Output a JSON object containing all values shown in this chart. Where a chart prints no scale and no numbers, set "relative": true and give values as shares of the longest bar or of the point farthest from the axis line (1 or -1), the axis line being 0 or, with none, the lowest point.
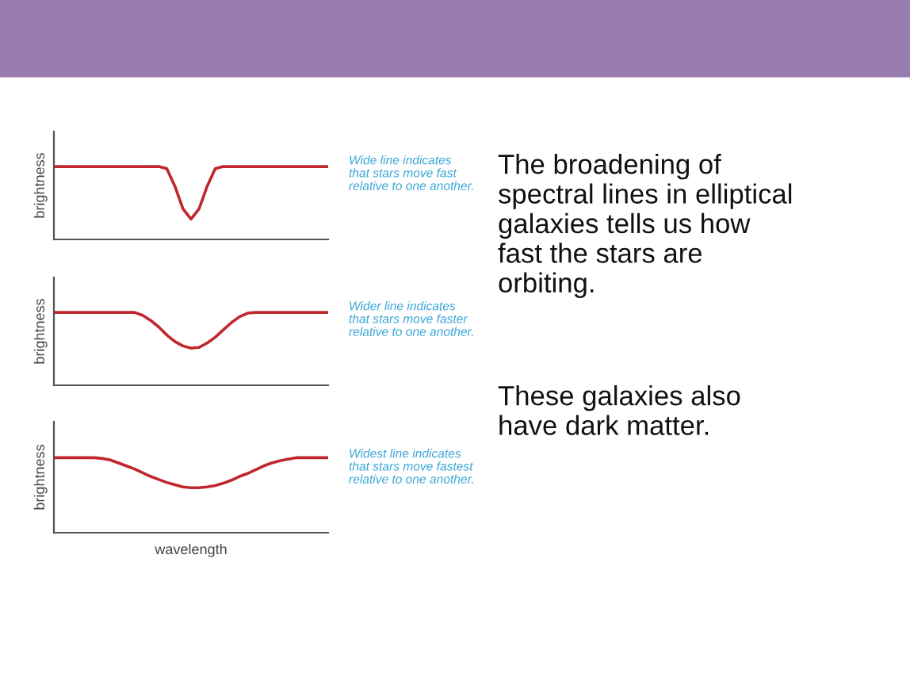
{
  "chart_data": [
    {
      "type": "line",
      "relative": true,
      "ylabel": "brightness",
      "categories": [
        null,
        null,
        null,
        null,
        null,
        null,
        null,
        null,
        null,
        null,
        null,
        null,
        null,
        null,
        null,
        null,
        null,
        null,
        null,
        null,
        null,
        null,
        null,
        null,
        null,
        null,
        null,
        null,
        null,
        null,
        null,
        null,
        null,
        null,
        null
      ],
      "series": [
        {
          "color": "#c0272d",
          "values": [
            1,
            1,
            1,
            1,
            1,
            1,
            1,
            1,
            1,
            1,
            1,
            1,
            1,
            1,
            0.97,
            0.73,
            0.42,
            0.28,
            0.42,
            0.73,
            0.97,
            1,
            1,
            1,
            1,
            1,
            1,
            1,
            1,
            1,
            1,
            1,
            1,
            1,
            1
          ]
        }
      ],
      "annotations": [
        "Wide line indicates\nthat stars move fast\nrelative to one another.",
        "The broadening of\nspectral lines in elliptical\ngalaxies tells us how\nfast the stars are\norbiting.",
        "These galaxies also\nhave dark matter."
      ]
    },
    {
      "type": "line",
      "relative": true,
      "ylabel": "brightness",
      "categories": [
        null,
        null,
        null,
        null,
        null,
        null,
        null,
        null,
        null,
        null,
        null,
        null,
        null,
        null,
        null,
        null,
        null,
        null,
        null,
        null,
        null,
        null,
        null,
        null,
        null,
        null,
        null,
        null,
        null,
        null,
        null,
        null,
        null,
        null,
        null
      ],
      "series": [
        {
          "color": "#c0272d",
          "values": [
            1,
            1,
            1,
            1,
            1,
            1,
            1,
            1,
            1,
            1,
            1,
            0.96,
            0.89,
            0.8,
            0.69,
            0.6,
            0.54,
            0.51,
            0.52,
            0.58,
            0.66,
            0.76,
            0.86,
            0.94,
            0.99,
            1,
            1,
            1,
            1,
            1,
            1,
            1,
            1,
            1,
            1
          ]
        }
      ],
      "annotations": [
        "Wider line indicates\nthat stars move faster\nrelative to one another."
      ]
    },
    {
      "type": "line",
      "relative": true,
      "ylabel": "brightness",
      "xlabel": "wavelength",
      "categories": [
        null,
        null,
        null,
        null,
        null,
        null,
        null,
        null,
        null,
        null,
        null,
        null,
        null,
        null,
        null,
        null,
        null,
        null,
        null,
        null,
        null,
        null,
        null,
        null,
        null,
        null,
        null,
        null,
        null,
        null,
        null,
        null,
        null,
        null,
        null
      ],
      "series": [
        {
          "color": "#c0272d",
          "values": [
            1,
            1,
            1,
            1,
            1,
            1,
            0.99,
            0.97,
            0.93,
            0.89,
            0.85,
            0.8,
            0.75,
            0.71,
            0.67,
            0.64,
            0.61,
            0.6,
            0.6,
            0.61,
            0.63,
            0.66,
            0.7,
            0.75,
            0.79,
            0.84,
            0.89,
            0.93,
            0.96,
            0.98,
            1,
            1,
            1,
            1,
            1
          ]
        }
      ],
      "annotations": [
        "Widest line indicates\nthat stars move fastest\nrelative to one another."
      ]
    }
  ]
}
